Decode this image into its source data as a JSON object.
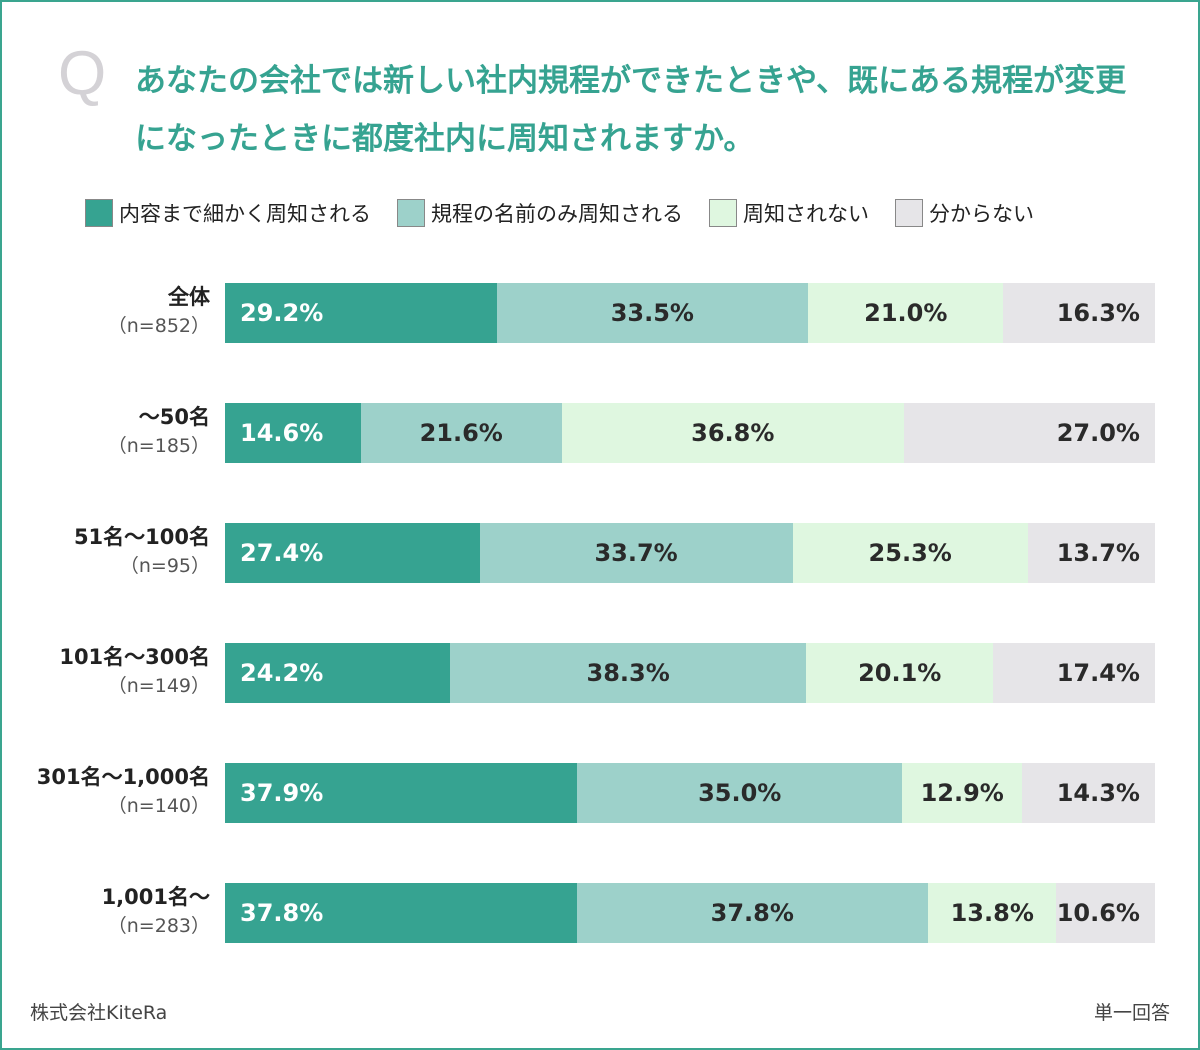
{
  "question_mark": "Q",
  "title": "あなたの会社では新しい社内規程ができたときや、既にある規程が変更になったときに都度社内に周知されますか。",
  "footer": {
    "company": "株式会社KiteRa",
    "answer_type": "単一回答"
  },
  "chart_data": {
    "type": "bar",
    "orientation": "horizontal",
    "stacked": true,
    "percent": true,
    "legend_position": "top",
    "categories": [
      {
        "name": "全体",
        "n": "（n=852）"
      },
      {
        "name": "〜50名",
        "n": "（n=185）"
      },
      {
        "name": "51名〜100名",
        "n": "（n=95）"
      },
      {
        "name": "101名〜300名",
        "n": "（n=149）"
      },
      {
        "name": "301名〜1,000名",
        "n": "（n=140）"
      },
      {
        "name": "1,001名〜",
        "n": "（n=283）"
      }
    ],
    "series": [
      {
        "name": "内容まで細かく周知される",
        "color": "#36a391",
        "values": [
          29.2,
          14.6,
          27.4,
          24.2,
          37.9,
          37.8
        ]
      },
      {
        "name": "規程の名前のみ周知される",
        "color": "#9dd1ca",
        "values": [
          33.5,
          21.6,
          33.7,
          38.3,
          35.0,
          37.8
        ]
      },
      {
        "name": "周知されない",
        "color": "#dff7e0",
        "values": [
          21.0,
          36.8,
          25.3,
          20.1,
          12.9,
          13.8
        ]
      },
      {
        "name": "分からない",
        "color": "#e6e5e8",
        "values": [
          16.3,
          27.0,
          13.7,
          17.4,
          14.3,
          10.6
        ]
      }
    ]
  }
}
